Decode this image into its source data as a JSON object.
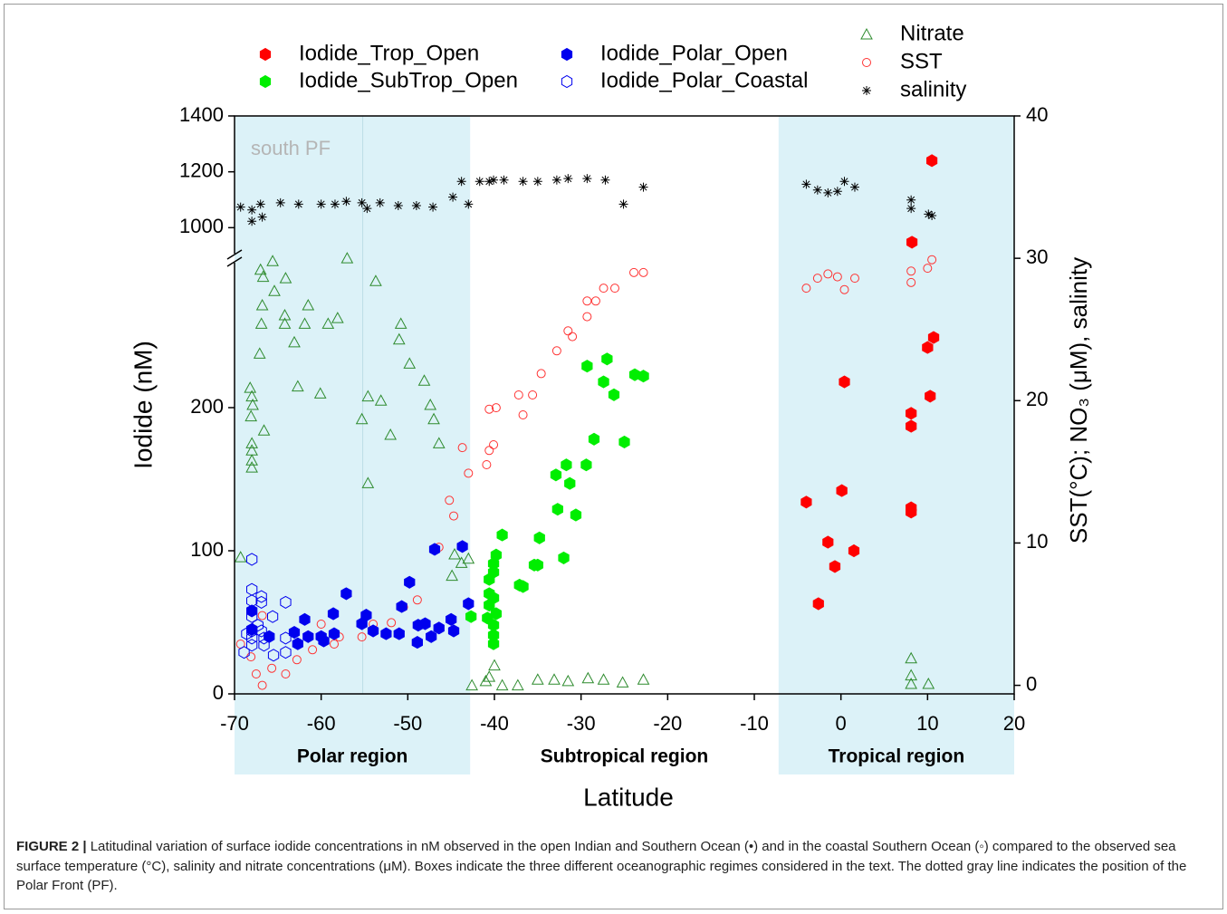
{
  "chart_data": {
    "type": "scatter",
    "xlabel": "Latitude",
    "ylabel": "Iodide (nM)",
    "y2label": "SST(°C); NO₃ (μM), salinity",
    "xlim": [
      -70,
      20
    ],
    "xticks": [
      -70,
      -60,
      -50,
      -40,
      -30,
      -20,
      -10,
      0,
      10,
      20
    ],
    "ylim": [
      0,
      1400
    ],
    "y_break": [
      300,
      920
    ],
    "yticks": [
      0,
      100,
      200,
      1000,
      1200,
      1400
    ],
    "y2lim": [
      -0.6,
      40
    ],
    "y2ticks": [
      0,
      10,
      20,
      30,
      40
    ],
    "regions": [
      {
        "label": "Polar region",
        "xlim": [
          -70,
          -42.8
        ],
        "shaded": true
      },
      {
        "label": "Subtropical region",
        "xlim": [
          -42.8,
          -7.2
        ],
        "shaded": false
      },
      {
        "label": "Tropical region",
        "xlim": [
          -7.2,
          20
        ],
        "shaded": true
      }
    ],
    "region_color": "#dcf2f8",
    "pf_line": -55.2,
    "pf_label": "south PF",
    "series": [
      {
        "name": "Iodide_Trop_Open",
        "color": "#ff0000",
        "marker": "hexagon",
        "filled": true,
        "axis": "y",
        "x": [
          10.5,
          8.2,
          10.7,
          10,
          0.4,
          10.3,
          8.1,
          8.1,
          -4.0,
          0.1,
          8.1,
          8.1,
          -1.5,
          1.5,
          -0.7,
          -2.6
        ],
        "values": [
          1240,
          948,
          249,
          242,
          218,
          208,
          196,
          187,
          134,
          142,
          130,
          127,
          106,
          100,
          89,
          63
        ]
      },
      {
        "name": "Iodide_SubTrop_Open",
        "color": "#00ee00",
        "marker": "hexagon",
        "filled": true,
        "axis": "y",
        "x": [
          -29.3,
          -27.0,
          -27.4,
          -26.2,
          -23.8,
          -22.8,
          -25.0,
          -28.5,
          -32.9,
          -31.7,
          -31.3,
          -29.4,
          -32.7,
          -30.6,
          -39.1,
          -34.8,
          -35.4,
          -35.0,
          -32.0,
          -37.1,
          -36.7,
          -39.8,
          -40.1,
          -40.6,
          -40.6,
          -40.1,
          -40.6,
          -40.8,
          -42.7,
          -40.1,
          -40.1,
          -40.1,
          -40.1,
          -39.8
        ],
        "values": [
          229,
          234,
          218,
          209,
          223,
          222,
          176,
          178,
          153,
          160,
          147,
          160,
          129,
          125,
          111,
          109,
          90,
          90,
          95,
          76,
          75,
          97,
          91,
          80,
          70,
          67,
          62,
          53,
          54,
          48,
          35,
          41,
          85,
          56
        ]
      },
      {
        "name": "Iodide_Polar_Open",
        "color": "#0000ee",
        "marker": "hexagon",
        "filled": true,
        "axis": "y",
        "x": [
          -46.9,
          -43.7,
          -49.8,
          -43.0,
          -57.1,
          -68.0,
          -68.0,
          -66.0,
          -63.1,
          -61.9,
          -61.5,
          -60.0,
          -58.6,
          -58.5,
          -55.3,
          -54.8,
          -54.0,
          -52.5,
          -51.0,
          -50.7,
          -48.8,
          -48.0,
          -48.9,
          -47.3,
          -46.4,
          -45.0,
          -44.7,
          -62.7,
          -59.7
        ],
        "values": [
          101,
          103,
          78,
          63,
          70,
          58,
          45,
          40,
          43,
          52,
          40,
          40,
          56,
          42,
          49,
          55,
          44,
          42,
          42,
          61,
          48,
          49,
          36,
          40,
          46,
          52,
          44,
          35,
          37
        ]
      },
      {
        "name": "Iodide_Polar_Coastal",
        "color": "#0000ee",
        "marker": "hexagon",
        "filled": false,
        "axis": "y",
        "x": [
          -68.0,
          -68.0,
          -68.0,
          -68.0,
          -68.0,
          -68.0,
          -68.0,
          -66.9,
          -66.9,
          -66.9,
          -66.6,
          -66.6,
          -65.6,
          -64.1,
          -65.5,
          -64.1,
          -64.1,
          -68.6,
          -68.9,
          -67.3
        ],
        "values": [
          94,
          73,
          65,
          54,
          44,
          39,
          34,
          68,
          64,
          44,
          39,
          34,
          54,
          64,
          27,
          29,
          39,
          42,
          29,
          48
        ]
      },
      {
        "name": "Nitrate",
        "color": "#2e8b2e",
        "marker": "triangle",
        "filled": false,
        "axis": "y2",
        "x": [
          -69.3,
          -67.0,
          -65.6,
          -66.7,
          -57.0,
          -64.1,
          -65.4,
          -66.8,
          -64.2,
          -61.5,
          -53.7,
          -66.9,
          -64.2,
          -61.9,
          -59.2,
          -58.1,
          -50.8,
          -51.0,
          -63.1,
          -67.1,
          -49.8,
          -48.1,
          -68.2,
          -68.0,
          -67.9,
          -68.1,
          -62.7,
          -60.1,
          -54.6,
          -53.1,
          -47.4,
          -47.0,
          -66.6,
          -55.3,
          -52.0,
          -46.4,
          -68.0,
          -68.0,
          -68.0,
          -68.0,
          -54.6,
          -44.6,
          -43.8,
          -43.0,
          -44.9,
          -42.6,
          -40.6,
          -40.0,
          -41.0,
          -39.1,
          -37.3,
          -35.0,
          -33.1,
          -31.5,
          -29.2,
          -27.4,
          -25.2,
          -22.8,
          8.1,
          8.1,
          8.1,
          10.1
        ],
        "values": [
          9.0,
          29.2,
          29.8,
          28.7,
          30.0,
          28.6,
          27.7,
          26.7,
          26.0,
          26.7,
          28.4,
          25.4,
          25.4,
          25.4,
          25.4,
          25.8,
          25.4,
          24.3,
          24.1,
          23.3,
          22.6,
          21.4,
          20.9,
          20.3,
          19.7,
          18.9,
          21.0,
          20.5,
          20.3,
          20.0,
          19.7,
          18.7,
          17.9,
          18.7,
          17.6,
          17.0,
          17.0,
          16.5,
          15.8,
          15.3,
          14.2,
          9.2,
          8.6,
          8.9,
          7.7,
          0,
          0.6,
          1.4,
          0.3,
          0,
          0,
          0.4,
          0.4,
          0.3,
          0.5,
          0.4,
          0.2,
          0.4,
          1.9,
          0.7,
          0.1,
          0.1
        ]
      },
      {
        "name": "SST",
        "color": "#ff3333",
        "marker": "circle",
        "filled": false,
        "axis": "y2",
        "x": [
          -69.3,
          -68.1,
          -67.5,
          -66.8,
          -66.8,
          -64.1,
          -65.7,
          -62.8,
          -61.0,
          -60.0,
          -58.5,
          -57.9,
          -55.3,
          -54.0,
          -51.9,
          -50.5,
          -48.9,
          -46.4,
          -45.2,
          -44.7,
          -43.7,
          -43.0,
          -40.9,
          -40.6,
          -40.1,
          -40.6,
          -39.8,
          -36.7,
          -37.2,
          -35.6,
          -34.6,
          -32.8,
          -31.5,
          -31.0,
          -29.3,
          -29.3,
          -28.3,
          -27.4,
          -26.1,
          -23.9,
          -22.8,
          -4.0,
          -2.7,
          -1.5,
          -0.4,
          0.4,
          1.6,
          8.1,
          8.1,
          10.0,
          10.5
        ],
        "values": [
          2.9,
          2.0,
          0.8,
          0,
          4.9,
          0.8,
          1.2,
          1.8,
          2.5,
          4.3,
          2.9,
          3.4,
          3.4,
          4.3,
          4.4,
          5.5,
          6.0,
          9.7,
          13.0,
          11.9,
          16.7,
          14.9,
          15.5,
          16.5,
          16.9,
          19.4,
          19.5,
          19.0,
          20.4,
          20.4,
          21.9,
          23.5,
          24.9,
          24.5,
          25.9,
          27.0,
          27.0,
          27.9,
          27.9,
          29.0,
          29.0,
          27.9,
          28.6,
          28.9,
          28.7,
          27.8,
          28.6,
          29.1,
          28.3,
          29.3,
          29.9
        ]
      },
      {
        "name": "salinity",
        "color": "#000000",
        "marker": "star",
        "filled": false,
        "axis": "y2",
        "x": [
          -69.3,
          -68.0,
          -68.0,
          -67.0,
          -66.8,
          -64.7,
          -62.6,
          -60.0,
          -58.4,
          -57.1,
          -55.3,
          -54.7,
          -53.2,
          -51.1,
          -49.0,
          -47.1,
          -44.8,
          -43.8,
          -43.0,
          -41.7,
          -40.6,
          -40.1,
          -38.9,
          -36.7,
          -35.0,
          -32.8,
          -31.5,
          -29.3,
          -27.2,
          -25.1,
          -22.8,
          -4.0,
          -2.7,
          -1.5,
          -0.4,
          0.4,
          1.6,
          8.1,
          8.1,
          10.1,
          10.5
        ],
        "values": [
          33.6,
          33.4,
          32.6,
          33.8,
          32.9,
          33.9,
          33.8,
          33.8,
          33.8,
          34.0,
          33.9,
          33.5,
          33.9,
          33.7,
          33.7,
          33.6,
          34.3,
          35.4,
          33.8,
          35.4,
          35.4,
          35.5,
          35.5,
          35.4,
          35.4,
          35.5,
          35.6,
          35.6,
          35.5,
          33.8,
          35.0,
          35.2,
          34.8,
          34.6,
          34.7,
          35.4,
          35.0,
          34.1,
          33.5,
          33.1,
          33.0
        ]
      }
    ]
  },
  "caption": {
    "label": "FIGURE 2 |",
    "text": "Latitudinal variation of surface iodide concentrations in nM observed in the open Indian and Southern Ocean (•) and in the coastal Southern Ocean (◦) compared to the observed sea surface temperature (°C), salinity and nitrate concentrations (μM). Boxes indicate the three different oceanographic regimes considered in the text. The dotted gray line indicates the position of the Polar Front (PF)."
  }
}
